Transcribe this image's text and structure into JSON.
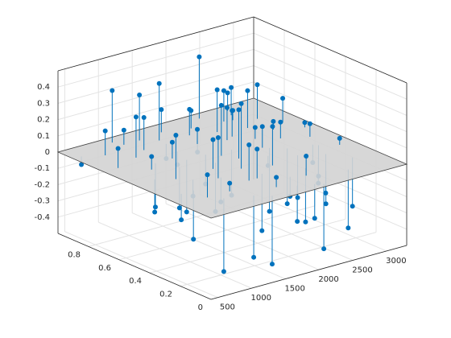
{
  "chart_data": {
    "type": "stem3",
    "color": "#0072bd",
    "grid": true,
    "plane_color": "#d3d3d3",
    "xlim": [
      400,
      3300
    ],
    "ylim": [
      0,
      1
    ],
    "zlim": [
      -0.5,
      0.5
    ],
    "xticks": [
      500,
      1000,
      1500,
      2000,
      2500,
      3000
    ],
    "yticks": [
      0,
      0.2,
      0.4,
      0.6,
      0.8
    ],
    "zticks": [
      -0.4,
      -0.3,
      -0.2,
      -0.1,
      0,
      0.1,
      0.2,
      0.3,
      0.4
    ],
    "x": [
      520,
      610,
      700,
      760,
      820,
      880,
      930,
      990,
      1040,
      1090,
      1130,
      1180,
      1220,
      1260,
      1300,
      1340,
      1380,
      1420,
      1450,
      1490,
      1530,
      1560,
      1600,
      1640,
      1680,
      1710,
      1750,
      1790,
      1830,
      1860,
      1900,
      1940,
      1980,
      2020,
      2060,
      2100,
      2140,
      2180,
      2220,
      2260,
      2300,
      2340,
      2380,
      2420,
      2460,
      2500,
      2540,
      2580,
      2620,
      2660,
      2700,
      2740,
      2780,
      2820,
      2860,
      2900,
      2950,
      3000,
      3050,
      3100,
      640,
      900,
      1150,
      1400,
      1650,
      1900,
      2150,
      2400,
      2650,
      2900,
      800,
      1050,
      1300,
      1550,
      1800,
      2050,
      2300,
      2550,
      2800,
      3150
    ],
    "y": [
      0.9,
      0.7,
      0.5,
      0.85,
      0.3,
      0.6,
      0.15,
      0.75,
      0.4,
      0.95,
      0.2,
      0.55,
      0.8,
      0.1,
      0.65,
      0.35,
      0.9,
      0.05,
      0.45,
      0.7,
      0.25,
      0.85,
      0.5,
      0.12,
      0.6,
      0.38,
      0.92,
      0.28,
      0.72,
      0.08,
      0.48,
      0.82,
      0.18,
      0.58,
      0.33,
      0.88,
      0.03,
      0.68,
      0.43,
      0.78,
      0.22,
      0.52,
      0.95,
      0.14,
      0.62,
      0.36,
      0.86,
      0.26,
      0.74,
      0.1,
      0.56,
      0.9,
      0.3,
      0.66,
      0.42,
      0.8,
      0.2,
      0.5,
      0.7,
      0.35,
      0.3,
      0.45,
      0.9,
      0.6,
      0.25,
      0.75,
      0.15,
      0.5,
      0.85,
      0.4,
      0.2,
      0.65,
      0.35,
      0.8,
      0.55,
      0.05,
      0.7,
      0.45,
      0.95,
      0.6
    ],
    "z": [
      -0.05,
      0.12,
      -0.2,
      0.15,
      -0.3,
      0.08,
      -0.45,
      0.25,
      -0.1,
      0.32,
      0.05,
      -0.25,
      0.2,
      -0.38,
      0.1,
      -0.15,
      0.28,
      -0.42,
      0.18,
      -0.08,
      0.22,
      0.35,
      -0.3,
      0.06,
      -0.18,
      0.4,
      0.14,
      -0.35,
      0.09,
      -0.22,
      0.3,
      0.16,
      -0.12,
      -0.28,
      0.24,
      0.11,
      -0.4,
      0.2,
      -0.06,
      0.26,
      -0.33,
      0.13,
      0.38,
      -0.2,
      0.07,
      -0.26,
      0.19,
      -0.14,
      0.23,
      -0.36,
      0.1,
      0.17,
      -0.24,
      0.05,
      -0.11,
      0.21,
      -0.3,
      0.08,
      0.15,
      0.04,
      -0.16,
      0.27,
      0.09,
      -0.32,
      0.18,
      -0.07,
      0.12,
      -0.39,
      0.06,
      -0.19,
      0.14,
      -0.27,
      0.25,
      -0.09,
      0.31,
      -0.21,
      0.16,
      -0.34,
      0.11,
      0.03
    ]
  }
}
